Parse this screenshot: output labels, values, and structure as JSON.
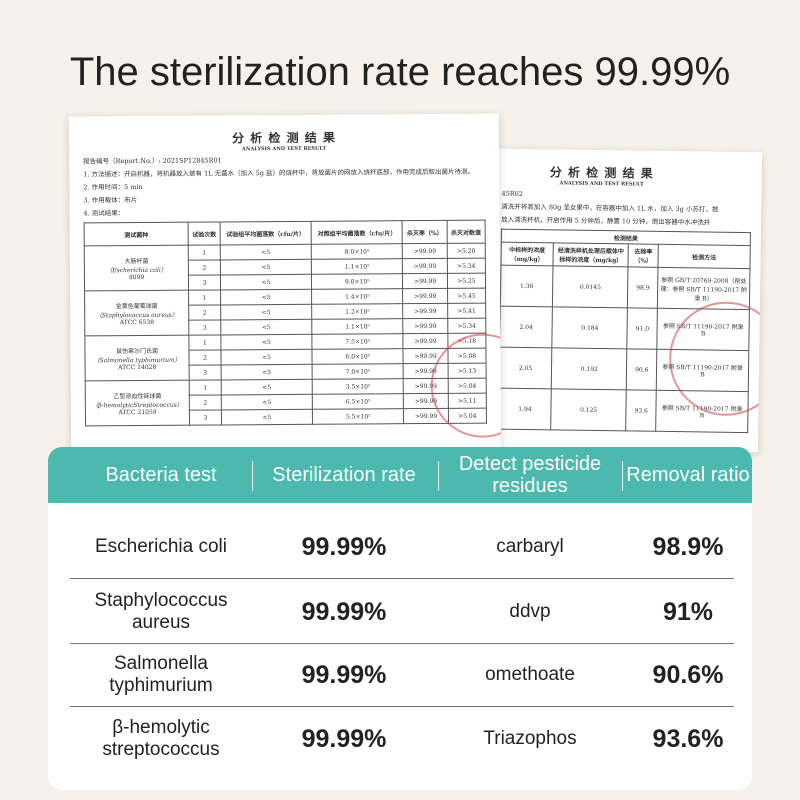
{
  "title": "The sterilization rate reaches 99.99%",
  "front_document": {
    "title": "分 析 检 测 结 果",
    "subtitle": "ANALYSIS AND TEST RESULT",
    "report_no": "报告编号（Report.No.）: 2021SP12845R01",
    "lines": [
      "1. 方法描述：开启机器，将机器放入装有 1L 无菌水（加入 5g 盐）的烧杯中，将放菌片的网放入烧杯底部，作用完成后取出菌片待测。",
      "2. 作用时间：5 min",
      "3. 作用载体：布片",
      "4. 测试结果："
    ],
    "table": {
      "header": [
        "测试菌种",
        "试验次数",
        "试验组平均菌落数（cfu/片）",
        "对照组平均菌落数（cfu/片）",
        "杀灭率（%）",
        "杀灭对数值"
      ],
      "groups": [
        {
          "strain": [
            "大肠杆菌",
            "（Escherichia coli）",
            "8099"
          ],
          "trials": [
            [
              "1",
              "<5",
              "8.0×10⁵",
              ">99.99",
              ">5.20"
            ],
            [
              "2",
              "<5",
              "1.1×10⁵",
              ">99.99",
              ">5.34"
            ],
            [
              "3",
              "<5",
              "9.0×10⁵",
              ">99.99",
              ">5.25"
            ]
          ]
        },
        {
          "strain": [
            "金黄色葡萄球菌",
            "（Staphylococcus aureus）",
            "ATCC 6538"
          ],
          "trials": [
            [
              "1",
              "<5",
              "1.4×10⁵",
              ">99.99",
              ">5.45"
            ],
            [
              "2",
              "<5",
              "1.2×10⁵",
              ">99.99",
              ">5.41"
            ],
            [
              "3",
              "<5",
              "1.1×10⁵",
              ">99.99",
              ">5.34"
            ]
          ]
        },
        {
          "strain": [
            "鼠伤寒沙门氏菌",
            "（Salmonella typhimurium）",
            "ATCC 14028"
          ],
          "trials": [
            [
              "1",
              "<5",
              "7.5×10⁵",
              ">99.99",
              ">5.18"
            ],
            [
              "2",
              "<5",
              "6.0×10⁵",
              ">99.99",
              ">5.08"
            ],
            [
              "3",
              "<5",
              "7.0×10⁵",
              ">99.99",
              ">5.13"
            ]
          ]
        },
        {
          "strain": [
            "乙型溶血性链球菌",
            "（β-hemolyticStreptococcus）",
            "ATCC 21059"
          ],
          "trials": [
            [
              "1",
              "<5",
              "3.5×10⁵",
              ">99.99",
              ">5.04"
            ],
            [
              "2",
              "<5",
              "6.5×10⁵",
              ">99.99",
              ">5.11"
            ],
            [
              "3",
              "<5",
              "5.5×10⁵",
              ">99.99",
              ">5.04"
            ]
          ]
        }
      ]
    }
  },
  "back_document": {
    "title": "分 析 检 测 结 果",
    "subtitle": "ANALYSIS AND TEST RESULT",
    "report_no": "45R02",
    "lines": [
      "清洗并将其加入 80g 圣女果中，在容器中加入 1L 水，加入 3g 小苏打，搅",
      "放入清洗杯机，开启作用 5 分钟后，静置 10 分钟，倒出容器中水冲洗并"
    ],
    "table": {
      "caption": "检测结果",
      "header": [
        "中标样的浓度（mg/kg）",
        "经清洗样机处理后载体中标样的浓度（mg/kg）",
        "去除率（%）",
        "检测方法"
      ],
      "rows": [
        [
          "1.36",
          "0.0145",
          "98.9",
          "参照 GB/T 20769-2008（前处理：参照 SB/T 11190-2017 附录 B）"
        ],
        [
          "2.04",
          "0.184",
          "91.0",
          "参照 SB/T 11190-2017 附录 B"
        ],
        [
          "2.05",
          "0.192",
          "90.6",
          "参照 SB/T 11190-2017 附录 B"
        ],
        [
          "1.94",
          "0.125",
          "93.6",
          "参照 SB/T 11190-2017 附录 B"
        ]
      ]
    }
  },
  "summary_table": {
    "header": [
      "Bacteria test",
      "Sterilization rate",
      "Detect pesticide residues",
      "Removal ratio"
    ],
    "rows": [
      [
        "Escherichia coli",
        "99.99%",
        "carbaryl",
        "98.9%"
      ],
      [
        "Staphylococcus aureus",
        "99.99%",
        "ddvp",
        "91%"
      ],
      [
        "Salmonella typhimurium",
        "99.99%",
        "omethoate",
        "90.6%"
      ],
      [
        "β-hemolytic streptococcus",
        "99.99%",
        "Triazophos",
        "93.6%"
      ]
    ]
  }
}
